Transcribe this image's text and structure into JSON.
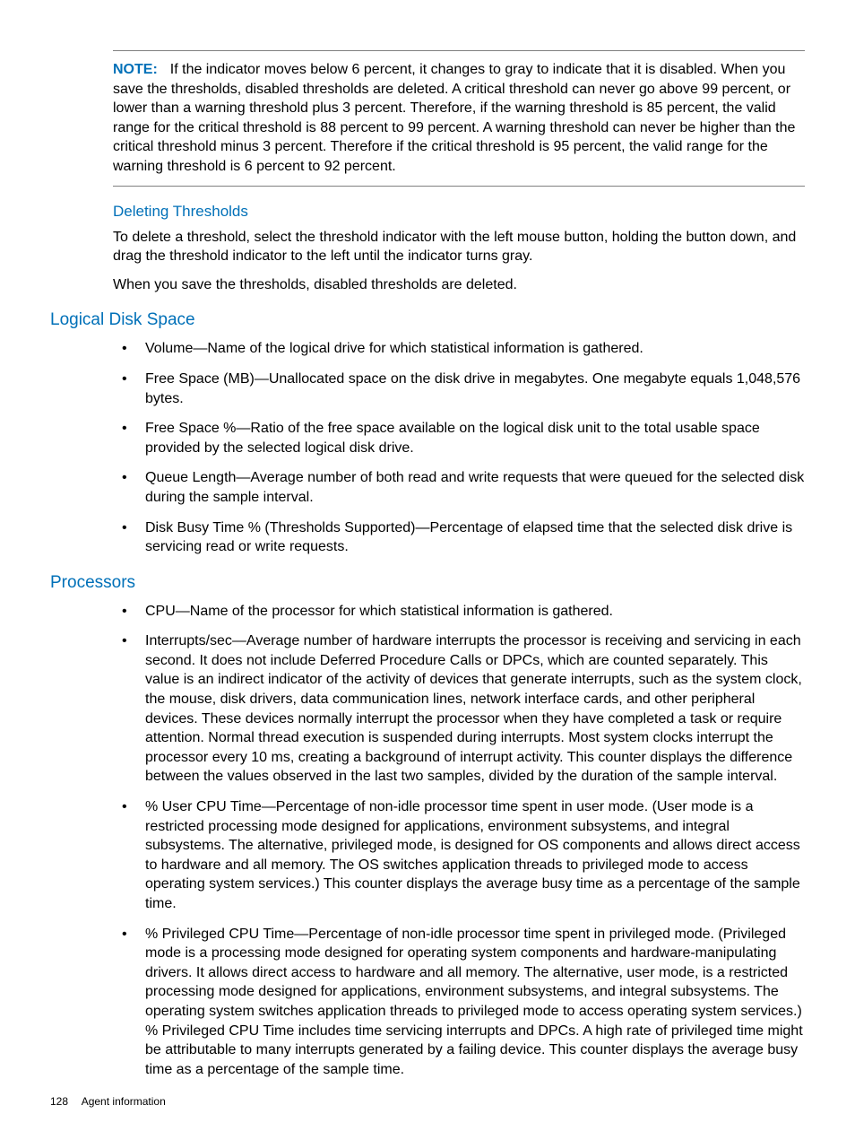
{
  "colors": {
    "accent": "#0070b8",
    "text": "#000000",
    "rule": "#808080",
    "background": "#ffffff"
  },
  "typography": {
    "body_fontsize_pt": 12,
    "heading2_fontsize_pt": 14,
    "heading3_fontsize_pt": 13,
    "footer_fontsize_pt": 9,
    "font_family": "Futura-like / Arial"
  },
  "note": {
    "label": "NOTE:",
    "text": "If the indicator moves below 6 percent, it changes to gray to indicate that it is disabled. When you save the thresholds, disabled thresholds are deleted. A critical threshold can never go above 99 percent, or lower than a warning threshold plus 3 percent. Therefore, if the warning threshold is 85 percent, the valid range for the critical threshold is 88 percent to 99 percent. A warning threshold can never be higher than the critical threshold minus 3 percent. Therefore if the critical threshold is 95 percent, the valid range for the warning threshold is 6 percent to 92 percent."
  },
  "sections": {
    "deleting_thresholds": {
      "title": "Deleting Thresholds",
      "paragraphs": [
        "To delete a threshold, select the threshold indicator with the left mouse button, holding the button down, and drag the threshold indicator to the left until the indicator turns gray.",
        "When you save the thresholds, disabled thresholds are deleted."
      ]
    },
    "logical_disk_space": {
      "title": "Logical Disk Space",
      "items": [
        "Volume—Name of the logical drive for which statistical information is gathered.",
        "Free Space (MB)—Unallocated space on the disk drive in megabytes. One megabyte equals 1,048,576 bytes.",
        "Free Space %—Ratio of the free space available on the logical disk unit to the total usable space provided by the selected logical disk drive.",
        "Queue Length—Average number of both read and write requests that were queued for the selected disk during the sample interval.",
        "Disk Busy Time % (Thresholds Supported)—Percentage of elapsed time that the selected disk drive is servicing read or write requests."
      ]
    },
    "processors": {
      "title": "Processors",
      "items": [
        "CPU—Name of the processor for which statistical information is gathered.",
        "Interrupts/sec—Average number of hardware interrupts the processor is receiving and servicing in each second. It does not include Deferred Procedure Calls or DPCs, which are counted separately. This value is an indirect indicator of the activity of devices that generate interrupts, such as the system clock, the mouse, disk drivers, data communication lines, network interface cards, and other peripheral devices. These devices normally interrupt the processor when they have completed a task or require attention. Normal thread execution is suspended during interrupts. Most system clocks interrupt the processor every 10 ms, creating a background of interrupt activity. This counter displays the difference between the values observed in the last two samples, divided by the duration of the sample interval.",
        "% User CPU Time—Percentage of non-idle processor time spent in user mode. (User mode is a restricted processing mode designed for applications, environment subsystems, and integral subsystems. The alternative, privileged mode, is designed for OS components and allows direct access to hardware and all memory. The OS switches application threads to privileged mode to access operating system services.) This counter displays the average busy time as a percentage of the sample time.",
        "% Privileged CPU Time—Percentage of non-idle processor time spent in privileged mode. (Privileged mode is a processing mode designed for operating system components and hardware-manipulating drivers. It allows direct access to hardware and all memory. The alternative, user mode, is a restricted processing mode designed for applications, environment subsystems, and integral subsystems. The operating system switches application threads to privileged mode to access operating system services.) % Privileged CPU Time includes time servicing interrupts and DPCs. A high rate of privileged time might be attributable to many interrupts generated by a failing device. This counter displays the average busy time as a percentage of the sample time."
      ]
    }
  },
  "footer": {
    "page_number": "128",
    "section_label": "Agent information"
  }
}
